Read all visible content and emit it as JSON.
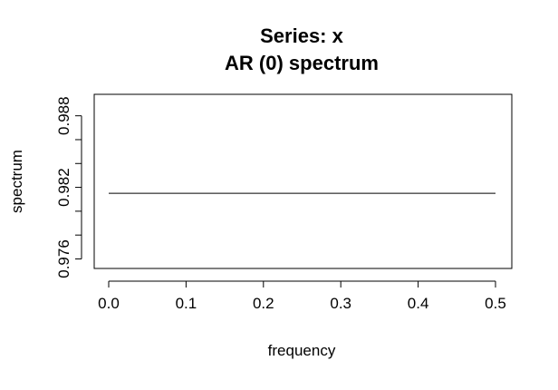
{
  "chart_data": {
    "type": "line",
    "title": "Series: x",
    "subtitle": "AR (0) spectrum",
    "xlabel": "frequency",
    "ylabel": "spectrum",
    "xlim": [
      0.0,
      0.5
    ],
    "ylim": [
      0.9752,
      0.9898
    ],
    "x_ticks": [
      0.0,
      0.1,
      0.2,
      0.3,
      0.4,
      0.5
    ],
    "x_tick_labels": [
      "0.0",
      "0.1",
      "0.2",
      "0.3",
      "0.4",
      "0.5"
    ],
    "y_ticks": [
      0.976,
      0.978,
      0.98,
      0.982,
      0.984,
      0.986,
      0.988
    ],
    "y_tick_labels": [
      "0.976",
      "",
      "",
      "0.982",
      "",
      "",
      "0.988"
    ],
    "grid": false,
    "series": [
      {
        "x": [
          0.0,
          0.1,
          0.2,
          0.3,
          0.4,
          0.5
        ],
        "values": [
          0.9815,
          0.9815,
          0.9815,
          0.9815,
          0.9815,
          0.9815
        ],
        "color": "#000000"
      }
    ]
  }
}
